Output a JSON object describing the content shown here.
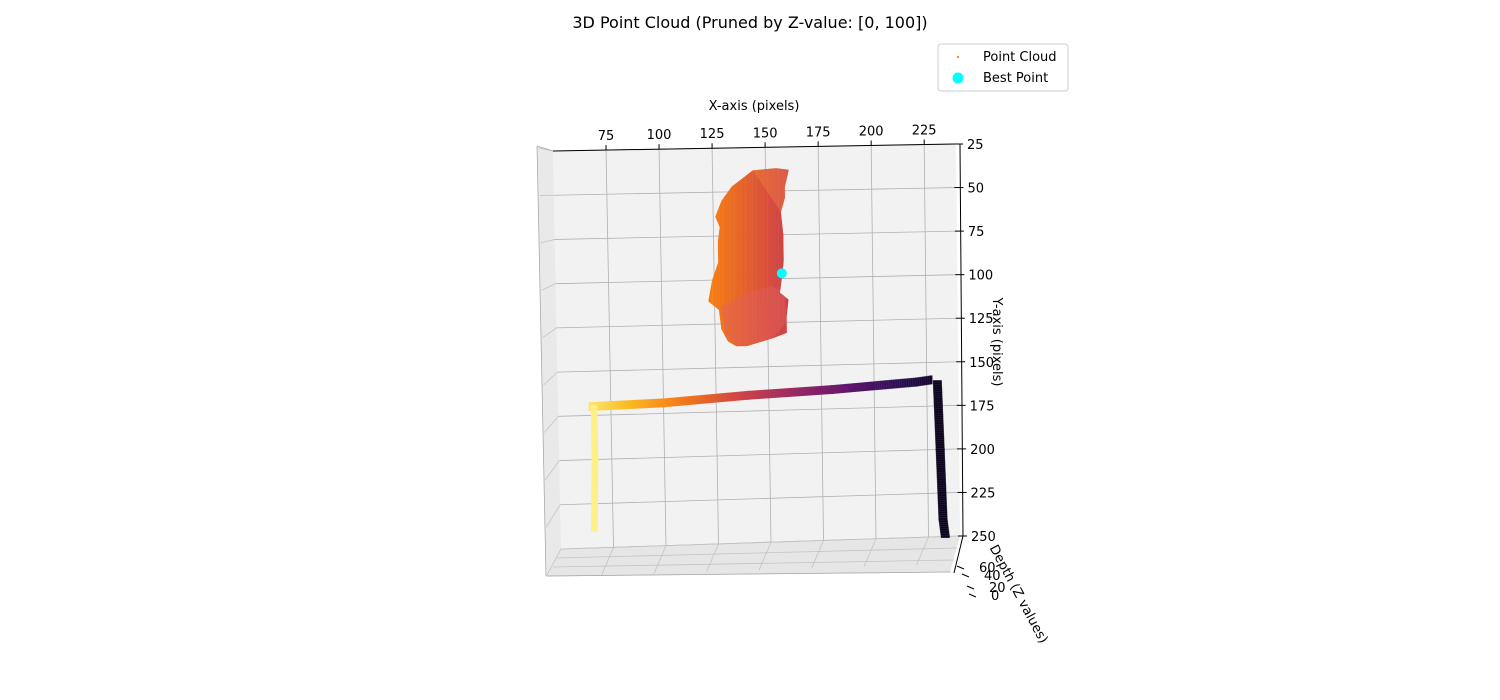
{
  "chart_data": {
    "type": "scatter",
    "projection": "3d",
    "title": "3D Point Cloud (Pruned by Z-value: [0, 100])",
    "xlabel": "X-axis (pixels)",
    "ylabel": "Y-axis (pixels)",
    "zlabel": "Depth (Z values)",
    "x_ticks": [
      "75",
      "100",
      "125",
      "150",
      "175",
      "200",
      "225"
    ],
    "y_ticks": [
      "25",
      "50",
      "75",
      "100",
      "125",
      "150",
      "175",
      "200",
      "225",
      "250"
    ],
    "z_ticks": [
      "0",
      "20",
      "40",
      "60"
    ],
    "xlim": [
      50,
      240
    ],
    "ylim": [
      25,
      250
    ],
    "zlim": [
      0,
      100
    ],
    "grid": true,
    "legend_position": "top-right",
    "colormap": "inferno",
    "series": [
      {
        "name": "Point Cloud",
        "color": "#f4894b",
        "clusters": [
          {
            "label": "object-blob",
            "outline": [
              [
                144,
                38
              ],
              [
                155,
                37
              ],
              [
                161,
                38
              ],
              [
                159,
                48
              ],
              [
                159,
                54
              ],
              [
                157,
                62
              ],
              [
                158,
                75
              ],
              [
                158,
                90
              ],
              [
                157,
                100
              ],
              [
                156,
                108
              ],
              [
                160,
                112
              ],
              [
                159,
                122
              ],
              [
                159,
                131
              ],
              [
                152,
                134
              ],
              [
                140,
                138
              ],
              [
                135,
                138
              ],
              [
                131,
                135
              ],
              [
                128,
                128
              ],
              [
                127,
                117
              ],
              [
                122,
                112
              ],
              [
                124,
                100
              ],
              [
                127,
                90
              ],
              [
                127,
                78
              ],
              [
                128,
                70
              ],
              [
                126,
                64
              ],
              [
                129,
                55
              ],
              [
                134,
                47
              ]
            ],
            "z_range": [
              30,
              60
            ]
          },
          {
            "label": "frame-top-bar",
            "polyline": [
              [
                65,
                170
              ],
              [
                100,
                169
              ],
              [
                140,
                166
              ],
              [
                180,
                164
              ],
              [
                220,
                161
              ],
              [
                227,
                160
              ]
            ],
            "width": 4,
            "z_gradient": [
              95,
              5
            ]
          },
          {
            "label": "frame-left-leg",
            "polyline": [
              [
                67,
                170
              ],
              [
                67,
                200
              ],
              [
                66,
                240
              ]
            ],
            "width": 3,
            "z_range": [
              95,
              100
            ]
          },
          {
            "label": "frame-right-leg",
            "polyline": [
              [
                230,
                161
              ],
              [
                231,
                200
              ],
              [
                232,
                240
              ],
              [
                233,
                250
              ]
            ],
            "width": 4,
            "z_range": [
              0,
              5
            ]
          }
        ]
      },
      {
        "name": "Best Point",
        "color": "#00ffff",
        "x": [
          157
        ],
        "y": [
          97
        ],
        "z": [
          50
        ]
      }
    ]
  }
}
